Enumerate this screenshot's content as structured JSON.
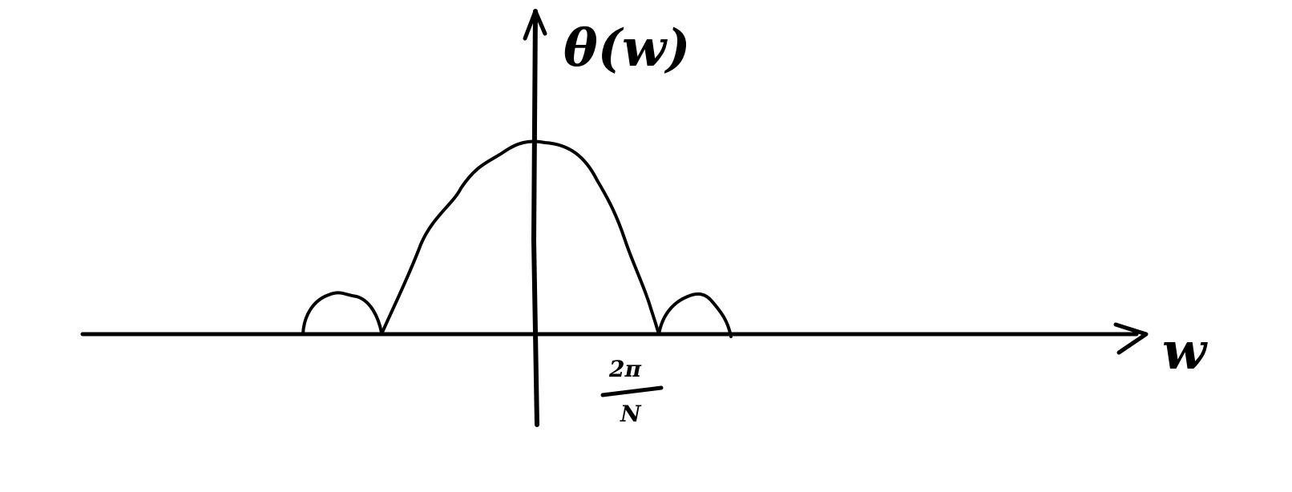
{
  "diagram": {
    "y_axis_label": "θ(w)",
    "x_axis_label": "w",
    "tick_label": {
      "numerator": "2π",
      "denominator": "N"
    },
    "stroke_color": "#000000",
    "background_color": "#ffffff"
  }
}
